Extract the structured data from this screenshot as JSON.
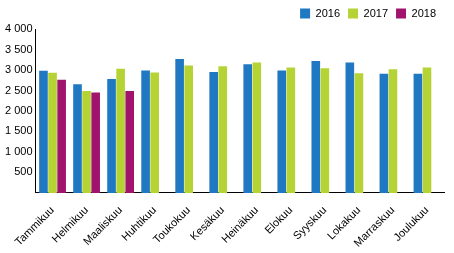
{
  "chart_data": {
    "type": "bar",
    "categories": [
      "Tammikuu",
      "Helmikuu",
      "Maaliskuu",
      "Huhtikuu",
      "Toukokuu",
      "Kesäkuu",
      "Heinäkuu",
      "Elokuu",
      "Syyskuu",
      "Lokakuu",
      "Marraskuu",
      "Joulukuu"
    ],
    "series": [
      {
        "name": "2016",
        "color": "#1f78c1",
        "values": [
          2980,
          2650,
          2780,
          2990,
          3270,
          2950,
          3140,
          2990,
          3220,
          3180,
          2910,
          2910
        ]
      },
      {
        "name": "2017",
        "color": "#b5d334",
        "values": [
          2930,
          2490,
          3030,
          2940,
          3110,
          3090,
          3180,
          3060,
          3040,
          2920,
          3020,
          3060
        ]
      },
      {
        "name": "2018",
        "color": "#a0146e",
        "values": [
          2760,
          2450,
          2490,
          null,
          null,
          null,
          null,
          null,
          null,
          null,
          null,
          null
        ]
      }
    ],
    "ylim": [
      0,
      4000
    ],
    "yticks": [
      {
        "value": 500,
        "label": "500"
      },
      {
        "value": 1000,
        "label": "1 000"
      },
      {
        "value": 1500,
        "label": "1 500"
      },
      {
        "value": 2000,
        "label": "2 000"
      },
      {
        "value": 2500,
        "label": "2 500"
      },
      {
        "value": 3000,
        "label": "3 000"
      },
      {
        "value": 3500,
        "label": "3 500"
      },
      {
        "value": 4000,
        "label": "4 000"
      }
    ],
    "grid": false,
    "legend": "top"
  }
}
